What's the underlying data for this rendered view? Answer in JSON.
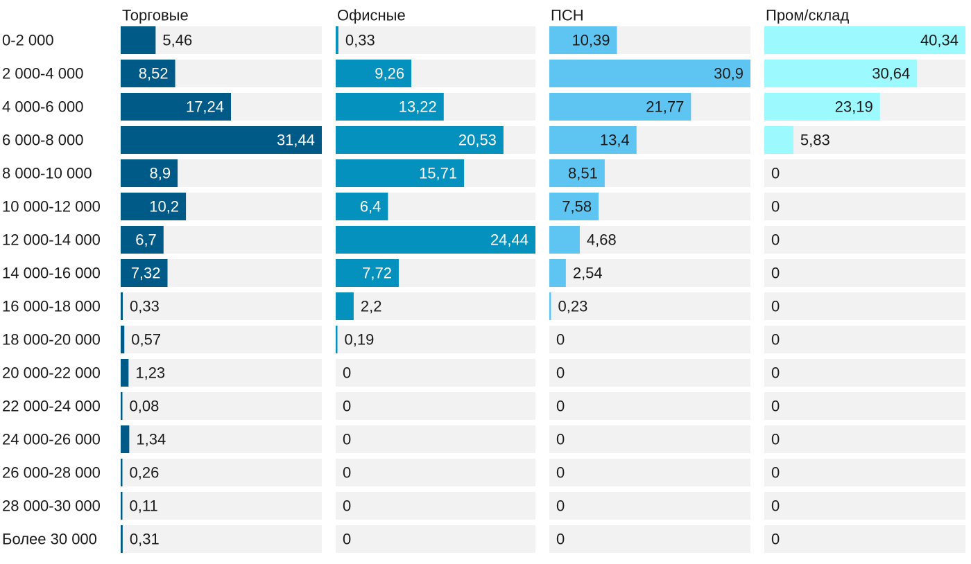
{
  "chart_data": {
    "type": "bar",
    "orientation": "horizontal",
    "layout": "small-multiples",
    "categories": [
      "0-2 000",
      "2 000-4 000",
      "4 000-6 000",
      "6 000-8 000",
      "8 000-10 000",
      "10 000-12 000",
      "12 000-14 000",
      "14 000-16 000",
      "16 000-18 000",
      "18 000-20 000",
      "20 000-22 000",
      "22 000-24 000",
      "24 000-26 000",
      "26 000-28 000",
      "28 000-30 000",
      "Более 30 000"
    ],
    "series": [
      {
        "name": "Торговые",
        "color": "#005a87",
        "max": 31.44,
        "values": [
          5.46,
          8.52,
          17.24,
          31.44,
          8.9,
          10.2,
          6.7,
          7.32,
          0.33,
          0.57,
          1.23,
          0.08,
          1.34,
          0.26,
          0.11,
          0.31
        ],
        "labels": [
          "5,46",
          "8,52",
          "17,24",
          "31,44",
          "8,9",
          "10,2",
          "6,7",
          "7,32",
          "0,33",
          "0,57",
          "1,23",
          "0,08",
          "1,34",
          "0,26",
          "0,11",
          "0,31"
        ]
      },
      {
        "name": "Офисные",
        "color": "#0491be",
        "max": 24.44,
        "values": [
          0.33,
          9.26,
          13.22,
          20.53,
          15.71,
          6.4,
          24.44,
          7.72,
          2.2,
          0.19,
          0,
          0,
          0,
          0,
          0,
          0
        ],
        "labels": [
          "0,33",
          "9,26",
          "13,22",
          "20,53",
          "15,71",
          "6,4",
          "24,44",
          "7,72",
          "2,2",
          "0,19",
          "0",
          "0",
          "0",
          "0",
          "0",
          "0"
        ]
      },
      {
        "name": "ПСН",
        "color": "#5ec5f2",
        "max": 30.9,
        "values": [
          10.39,
          30.9,
          21.77,
          13.4,
          8.51,
          7.58,
          4.68,
          2.54,
          0.23,
          0,
          0,
          0,
          0,
          0,
          0,
          0
        ],
        "labels": [
          "10,39",
          "30,9",
          "21,77",
          "13,4",
          "8,51",
          "7,58",
          "4,68",
          "2,54",
          "0,23",
          "0",
          "0",
          "0",
          "0",
          "0",
          "0",
          "0"
        ]
      },
      {
        "name": "Пром/склад",
        "color": "#9cf9fd",
        "max": 40.34,
        "values": [
          40.34,
          30.64,
          23.19,
          5.83,
          0,
          0,
          0,
          0,
          0,
          0,
          0,
          0,
          0,
          0,
          0,
          0
        ],
        "labels": [
          "40,34",
          "30,64",
          "23,19",
          "5,83",
          "0",
          "0",
          "0",
          "0",
          "0",
          "0",
          "0",
          "0",
          "0",
          "0",
          "0",
          "0"
        ]
      }
    ],
    "track_color": "#f2f2f2",
    "grid": false,
    "legend": "none"
  }
}
